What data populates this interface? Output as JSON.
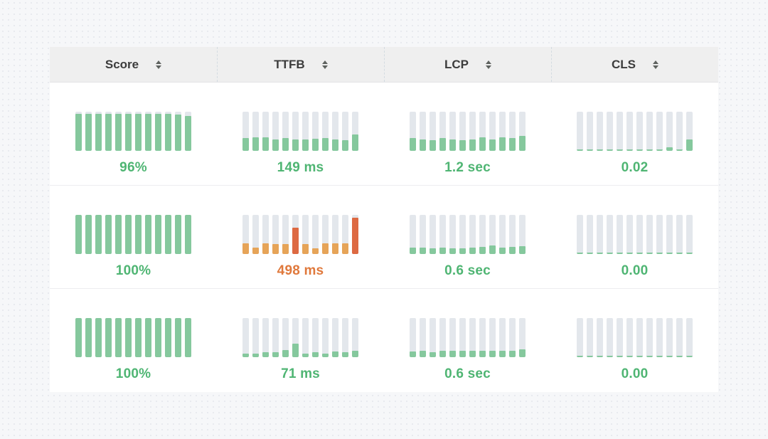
{
  "colors": {
    "page_bg": "#f6f7f9",
    "table_bg": "#ffffff",
    "header_bg": "#efefef",
    "header_text": "#3c3c3c",
    "row_border": "#ededf0",
    "track": "#e3e7ec",
    "green": "#85c89d",
    "green_text": "#4fb573",
    "orange": "#e6a458",
    "orange_spike": "#dd6942",
    "orange_text": "#e0793c"
  },
  "table": {
    "columns": [
      {
        "label": "Score",
        "sort_icon": "sort-arrows-icon"
      },
      {
        "label": "TTFB",
        "sort_icon": "sort-arrows-icon"
      },
      {
        "label": "LCP",
        "sort_icon": "sort-arrows-icon"
      },
      {
        "label": "CLS",
        "sort_icon": "sort-arrows-icon"
      }
    ],
    "rows": [
      {
        "cells": [
          {
            "metric": "score",
            "value": "96%",
            "palette": "green",
            "spike_indices": [],
            "bars": [
              0.95,
              0.95,
              0.95,
              0.95,
              0.95,
              0.95,
              0.95,
              0.95,
              0.95,
              0.94,
              0.92,
              0.9
            ]
          },
          {
            "metric": "ttfb",
            "value": "149 ms",
            "palette": "green",
            "spike_indices": [],
            "bars": [
              0.32,
              0.35,
              0.34,
              0.3,
              0.32,
              0.3,
              0.3,
              0.31,
              0.32,
              0.3,
              0.28,
              0.42
            ]
          },
          {
            "metric": "lcp",
            "value": "1.2 sec",
            "palette": "green",
            "spike_indices": [],
            "bars": [
              0.32,
              0.3,
              0.28,
              0.33,
              0.3,
              0.28,
              0.3,
              0.34,
              0.3,
              0.35,
              0.32,
              0.38
            ]
          },
          {
            "metric": "cls",
            "value": "0.02",
            "palette": "green",
            "spike_indices": [],
            "bars": [
              0.04,
              0.04,
              0.04,
              0.04,
              0.04,
              0.04,
              0.04,
              0.04,
              0.04,
              0.1,
              0.04,
              0.3
            ]
          }
        ]
      },
      {
        "cells": [
          {
            "metric": "score",
            "value": "100%",
            "palette": "green",
            "spike_indices": [],
            "bars": [
              1,
              1,
              1,
              1,
              1,
              1,
              1,
              1,
              1,
              1,
              1,
              1
            ]
          },
          {
            "metric": "ttfb",
            "value": "498 ms",
            "palette": "orange",
            "spike_indices": [
              5,
              11
            ],
            "bars": [
              0.27,
              0.17,
              0.28,
              0.25,
              0.26,
              0.68,
              0.26,
              0.15,
              0.27,
              0.27,
              0.27,
              0.92
            ]
          },
          {
            "metric": "lcp",
            "value": "0.6 sec",
            "palette": "green",
            "spike_indices": [],
            "bars": [
              0.17,
              0.17,
              0.15,
              0.17,
              0.14,
              0.15,
              0.17,
              0.18,
              0.22,
              0.16,
              0.18,
              0.2
            ]
          },
          {
            "metric": "cls",
            "value": "0.00",
            "palette": "green",
            "spike_indices": [],
            "bars": [
              0.03,
              0.03,
              0.03,
              0.03,
              0.03,
              0.03,
              0.03,
              0.03,
              0.03,
              0.03,
              0.03,
              0.03
            ]
          }
        ]
      },
      {
        "cells": [
          {
            "metric": "score",
            "value": "100%",
            "palette": "green",
            "spike_indices": [],
            "bars": [
              1,
              1,
              1,
              1,
              1,
              1,
              1,
              1,
              1,
              1,
              1,
              1
            ]
          },
          {
            "metric": "ttfb",
            "value": "71 ms",
            "palette": "green",
            "spike_indices": [],
            "bars": [
              0.1,
              0.09,
              0.12,
              0.12,
              0.18,
              0.35,
              0.1,
              0.12,
              0.1,
              0.14,
              0.13,
              0.17
            ]
          },
          {
            "metric": "lcp",
            "value": "0.6 sec",
            "palette": "green",
            "spike_indices": [],
            "bars": [
              0.15,
              0.17,
              0.12,
              0.16,
              0.17,
              0.17,
              0.17,
              0.17,
              0.16,
              0.17,
              0.16,
              0.2
            ]
          },
          {
            "metric": "cls",
            "value": "0.00",
            "palette": "green",
            "spike_indices": [],
            "bars": [
              0.03,
              0.03,
              0.03,
              0.03,
              0.03,
              0.03,
              0.03,
              0.03,
              0.03,
              0.03,
              0.03,
              0.03
            ]
          }
        ]
      }
    ]
  }
}
